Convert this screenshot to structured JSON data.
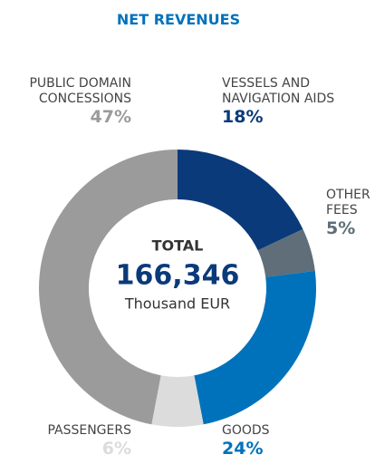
{
  "chart_data": {
    "type": "donut",
    "title": "NET REVENUES",
    "categories": [
      "VESSELS AND NAVIGATION AIDS",
      "OTHER FEES",
      "GOODS",
      "PASSENGERS",
      "PUBLIC DOMAIN CONCESSIONS"
    ],
    "values": [
      18,
      5,
      24,
      6,
      47
    ],
    "value_labels": [
      "18%",
      "5%",
      "24%",
      "6%",
      "47%"
    ],
    "colors": [
      "#0a3a7a",
      "#5f6e78",
      "#0072bb",
      "#dcdcdc",
      "#9b9b9b"
    ],
    "center_title": "TOTAL",
    "center_value": "166,346",
    "center_unit": "Thousand EUR"
  }
}
